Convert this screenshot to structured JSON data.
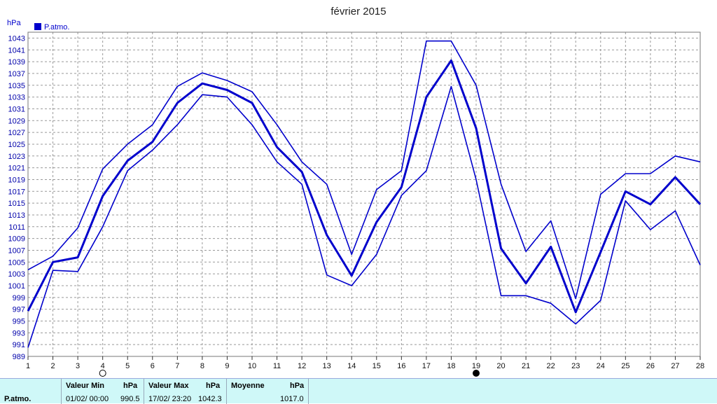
{
  "title": "février 2015",
  "unit_label": "hPa",
  "legend_label": "P.atmo.",
  "colors": {
    "series": "#0000cc",
    "grid": "#999999",
    "stats_bg": "#cff8f8"
  },
  "chart_data": {
    "type": "line",
    "title": "février 2015",
    "ylabel": "hPa",
    "ylim": [
      989,
      1044
    ],
    "xlim": [
      1,
      28
    ],
    "y_ticks": [
      "989",
      "991",
      "993",
      "995",
      "997",
      "999",
      "1001",
      "1003",
      "1005",
      "1007",
      "1009",
      "1011",
      "1013",
      "1015",
      "1017",
      "1019",
      "1021",
      "1023",
      "1025",
      "1027",
      "1029",
      "1031",
      "1033",
      "1035",
      "1037",
      "1039",
      "1041",
      "1043"
    ],
    "x_ticks": [
      "1",
      "2",
      "3",
      "4",
      "5",
      "6",
      "7",
      "8",
      "9",
      "10",
      "11",
      "12",
      "13",
      "14",
      "15",
      "16",
      "17",
      "18",
      "19",
      "20",
      "21",
      "22",
      "23",
      "24",
      "25",
      "26",
      "27",
      "28"
    ],
    "x": [
      1,
      2,
      3,
      4,
      5,
      6,
      7,
      8,
      9,
      10,
      11,
      12,
      13,
      14,
      15,
      16,
      17,
      18,
      19,
      20,
      21,
      22,
      23,
      24,
      25,
      26,
      27,
      28
    ],
    "grid": true,
    "legend_position": "top-left",
    "moon_phases": [
      {
        "day": 4,
        "phase": "full-moon"
      },
      {
        "day": 19,
        "phase": "new-moon"
      }
    ],
    "series": [
      {
        "name": "P.atmo.",
        "role": "max",
        "values": [
          1003.7,
          1006,
          1010.8,
          1020.8,
          1025,
          1028.3,
          1034.8,
          1037.1,
          1035.8,
          1033.9,
          1028.3,
          1022,
          1018.2,
          1006.3,
          1017.3,
          1020.5,
          1042.5,
          1042.5,
          1035,
          1018.2,
          1006.8,
          1012,
          998.8,
          1016.5,
          1020,
          1020,
          1023,
          1022
        ]
      },
      {
        "name": "P.atmo.",
        "role": "mean",
        "values": [
          996.7,
          1005,
          1005.8,
          1016.2,
          1022.2,
          1025.4,
          1032,
          1035.3,
          1034.2,
          1032,
          1024.5,
          1020.3,
          1009.6,
          1002.7,
          1011.8,
          1017.7,
          1033,
          1039.2,
          1027.7,
          1007.3,
          1001.4,
          1007.6,
          996.5,
          1006.7,
          1017,
          1014.8,
          1019.4,
          1014.8
        ]
      },
      {
        "name": "P.atmo.",
        "role": "min",
        "values": [
          990.5,
          1003.6,
          1003.4,
          1011,
          1020.5,
          1024,
          1028.3,
          1033.4,
          1033,
          1028.3,
          1022,
          1018.2,
          1002.8,
          1001,
          1006.3,
          1016.3,
          1020.5,
          1034.8,
          1019,
          999.3,
          999.3,
          998,
          994.5,
          998.5,
          1015.4,
          1010.5,
          1013.7,
          1004.5
        ]
      }
    ]
  },
  "stats": {
    "row_label": "P.atmo.",
    "min": {
      "header": "Valeur Min",
      "unit": "hPa",
      "datetime": "01/02/  00:00",
      "value": "990.5"
    },
    "max": {
      "header": "Valeur Max",
      "unit": "hPa",
      "datetime": "17/02/  23:20",
      "value": "1042.3"
    },
    "mean": {
      "header": "Moyenne",
      "unit": "hPa",
      "value": "1017.0"
    }
  }
}
